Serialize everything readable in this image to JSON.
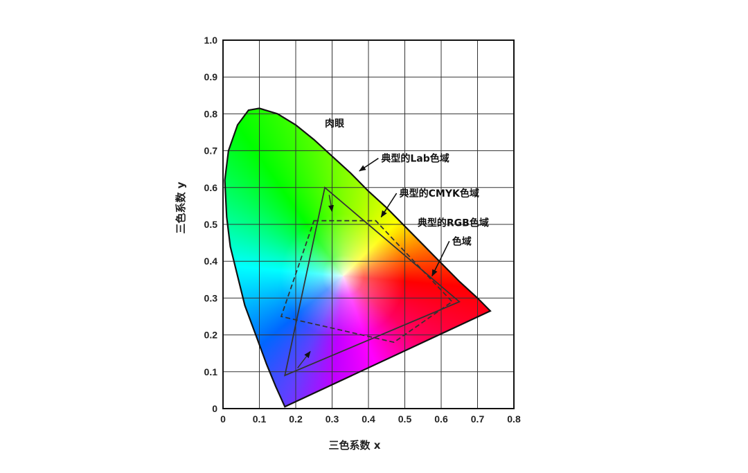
{
  "chart_data": {
    "type": "scatter",
    "title": "",
    "xlabel": "三色系数 x",
    "ylabel": "三色系数 y",
    "xlim": [
      0,
      0.8
    ],
    "ylim": [
      0,
      1.0
    ],
    "grid": true,
    "x_ticks": [
      "0",
      "0.1",
      "0.2",
      "0.3",
      "0.4",
      "0.5",
      "0.6",
      "0.7",
      "0.8"
    ],
    "y_ticks": [
      "0",
      "0.1",
      "0.2",
      "0.3",
      "0.4",
      "0.5",
      "0.6",
      "0.7",
      "0.8",
      "0.9",
      "1.0"
    ],
    "white_point": [
      0.33,
      0.36
    ],
    "spectral_locus": [
      [
        0.735,
        0.265
      ],
      [
        0.7,
        0.3
      ],
      [
        0.65,
        0.345
      ],
      [
        0.6,
        0.395
      ],
      [
        0.55,
        0.445
      ],
      [
        0.5,
        0.495
      ],
      [
        0.45,
        0.545
      ],
      [
        0.4,
        0.59
      ],
      [
        0.35,
        0.64
      ],
      [
        0.3,
        0.685
      ],
      [
        0.25,
        0.73
      ],
      [
        0.2,
        0.77
      ],
      [
        0.15,
        0.8
      ],
      [
        0.1,
        0.815
      ],
      [
        0.07,
        0.81
      ],
      [
        0.04,
        0.77
      ],
      [
        0.015,
        0.7
      ],
      [
        0.005,
        0.62
      ],
      [
        0.01,
        0.52
      ],
      [
        0.02,
        0.44
      ],
      [
        0.04,
        0.36
      ],
      [
        0.06,
        0.28
      ],
      [
        0.09,
        0.2
      ],
      [
        0.12,
        0.12
      ],
      [
        0.145,
        0.06
      ],
      [
        0.17,
        0.005
      ]
    ],
    "gamuts": [
      {
        "name": "典型的RGB色域",
        "style": "solid",
        "points": [
          [
            0.28,
            0.6
          ],
          [
            0.65,
            0.29
          ],
          [
            0.17,
            0.09
          ]
        ]
      },
      {
        "name": "典型的CMYK色域",
        "style": "dashed",
        "points": [
          [
            0.25,
            0.51
          ],
          [
            0.42,
            0.51
          ],
          [
            0.63,
            0.29
          ],
          [
            0.47,
            0.18
          ],
          [
            0.16,
            0.25
          ]
        ]
      }
    ],
    "annotations": [
      {
        "text": "肉眼",
        "x": 0.28,
        "y": 0.765
      },
      {
        "text": "典型的Lab色域",
        "x": 0.435,
        "y": 0.67,
        "arrow_to": [
          0.375,
          0.645
        ]
      },
      {
        "text": "典型的CMYK色域",
        "x": 0.485,
        "y": 0.575,
        "arrow_to": [
          0.435,
          0.52
        ]
      },
      {
        "text": "典型的RGB色域",
        "x": 0.535,
        "y": 0.495
      },
      {
        "text": "色域",
        "x": 0.63,
        "y": 0.445,
        "arrow_to": [
          0.575,
          0.36
        ]
      }
    ]
  }
}
